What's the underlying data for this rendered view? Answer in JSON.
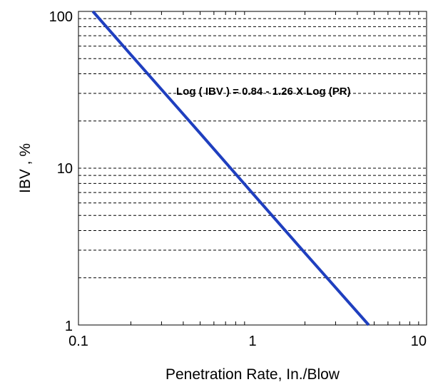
{
  "chart_data": {
    "type": "line",
    "xlabel": "Penetration Rate, In./Blow",
    "ylabel": "IBV , %",
    "xscale": "log",
    "yscale": "log",
    "xlim": [
      0.1,
      10
    ],
    "ylim": [
      1,
      100
    ],
    "x_tick_labels": [
      "0.1",
      "1",
      "10"
    ],
    "x_tick_values": [
      0.1,
      1,
      10
    ],
    "y_tick_labels": [
      "1",
      "10",
      "100"
    ],
    "y_tick_values": [
      1,
      10,
      100
    ],
    "grid": {
      "horizontal": "dashed",
      "vertical": "none"
    },
    "annotation": "Log ( IBV ) = 0.84 - 1.26 X Log (PR)",
    "series": [
      {
        "color": "#1f3fbf",
        "x": [
          0.121,
          0.2,
          0.5,
          1,
          2,
          4.65
        ],
        "y": [
          100,
          52.9,
          16.7,
          6.92,
          2.88,
          1
        ]
      }
    ]
  }
}
